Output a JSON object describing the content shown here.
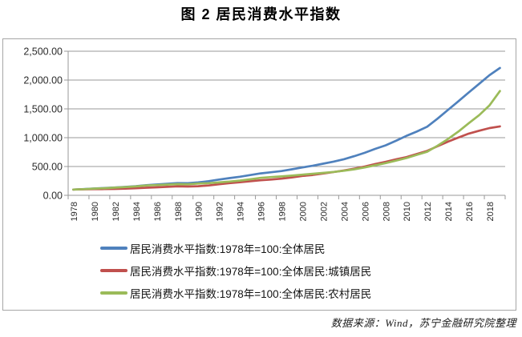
{
  "title": "图 2  居民消费水平指数",
  "source": "数据来源：Wind，苏宁金融研究院整理",
  "colors": {
    "series_all": "#4F81BD",
    "series_urban": "#C0504D",
    "series_rural": "#9BBB59",
    "gridline": "#999999",
    "axis": "#808080",
    "frame_border": "#a6a6a6",
    "tick_label": "#2b2b2b"
  },
  "chart_data": {
    "type": "line",
    "title": "图 2 居民消费水平指数",
    "x": [
      1978,
      1979,
      1980,
      1981,
      1982,
      1983,
      1984,
      1985,
      1986,
      1987,
      1988,
      1989,
      1990,
      1991,
      1992,
      1993,
      1994,
      1995,
      1996,
      1997,
      1998,
      1999,
      2000,
      2001,
      2002,
      2003,
      2004,
      2005,
      2006,
      2007,
      2008,
      2009,
      2010,
      2011,
      2012,
      2013,
      2014,
      2015,
      2016,
      2017,
      2018,
      2019
    ],
    "x_tick_labels": [
      "1978",
      "1980",
      "1982",
      "1984",
      "1986",
      "1988",
      "1990",
      "1992",
      "1994",
      "1996",
      "1998",
      "2000",
      "2002",
      "2004",
      "2006",
      "2008",
      "2010",
      "2012",
      "2014",
      "2016",
      "2018"
    ],
    "y_ticks": [
      0,
      500,
      1000,
      1500,
      2000,
      2500
    ],
    "y_tick_labels": [
      "0.00",
      "500.00",
      "1,000.00",
      "1,500.00",
      "2,000.00",
      "2,500.00"
    ],
    "ylim": [
      0,
      2500
    ],
    "grid": "horizontal",
    "legend_position": "bottom-left",
    "series": [
      {
        "name": "居民消费水平指数:1978年=100:全体居民",
        "color": "#4F81BD",
        "values": [
          100,
          109,
          118,
          127,
          136,
          146,
          159,
          177,
          188,
          200,
          213,
          211,
          223,
          246,
          273,
          298,
          322,
          351,
          380,
          400,
          421,
          451,
          483,
          513,
          548,
          585,
          627,
          679,
          737,
          806,
          866,
          946,
          1030,
          1105,
          1190,
          1330,
          1480,
          1630,
          1785,
          1935,
          2085,
          2210
        ]
      },
      {
        "name": "居民消费水平指数:1978年=100:全体居民:城镇居民",
        "color": "#C0504D",
        "values": [
          100,
          104,
          107,
          109,
          111,
          115,
          122,
          132,
          139,
          147,
          156,
          153,
          158,
          171,
          191,
          211,
          228,
          244,
          261,
          273,
          289,
          311,
          336,
          353,
          378,
          404,
          431,
          463,
          499,
          541,
          581,
          623,
          663,
          716,
          771,
          851,
          931,
          1001,
          1071,
          1121,
          1166,
          1196
        ]
      },
      {
        "name": "居民消费水平指数:1978年=100:全体居民:农村居民",
        "color": "#9BBB59",
        "values": [
          100,
          107,
          116,
          124,
          133,
          143,
          154,
          171,
          178,
          186,
          195,
          191,
          204,
          211,
          224,
          239,
          256,
          278,
          303,
          316,
          328,
          341,
          359,
          373,
          389,
          406,
          426,
          451,
          483,
          521,
          559,
          601,
          646,
          701,
          756,
          861,
          976,
          1106,
          1251,
          1391,
          1561,
          1810
        ]
      }
    ]
  }
}
